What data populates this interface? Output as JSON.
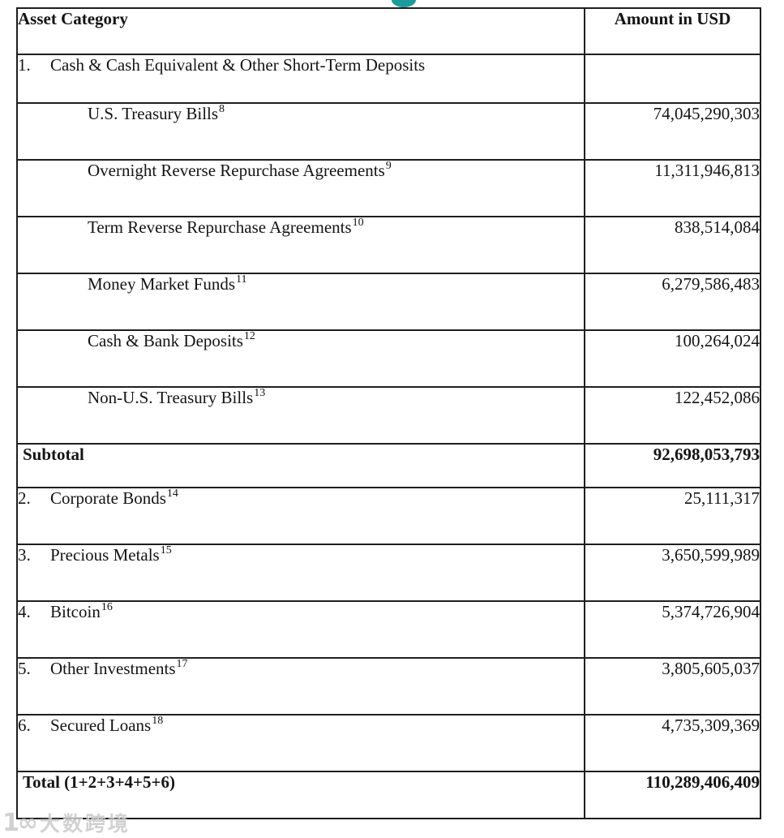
{
  "brand": {
    "logo_tip_color": "#1d9b9b"
  },
  "watermark": {
    "logo": "1∞",
    "text": "大数跨境"
  },
  "table": {
    "headers": {
      "asset_category": "Asset Category",
      "amount": "Amount in USD"
    },
    "rows": [
      {
        "type": "item",
        "lead": true,
        "num": "1.",
        "label": "Cash & Cash Equivalent & Other Short-Term Deposits",
        "sup": "",
        "amount": ""
      },
      {
        "type": "sub",
        "lead": false,
        "num": "",
        "label": "U.S. Treasury Bills",
        "sup": "8",
        "amount": "74,045,290,303"
      },
      {
        "type": "sub",
        "lead": false,
        "num": "",
        "label": "Overnight Reverse Repurchase Agreements",
        "sup": "9",
        "amount": "11,311,946,813"
      },
      {
        "type": "sub",
        "lead": false,
        "num": "",
        "label": "Term Reverse Repurchase Agreements",
        "sup": "10",
        "amount": "838,514,084"
      },
      {
        "type": "sub",
        "lead": false,
        "num": "",
        "label": "Money Market Funds",
        "sup": "11",
        "amount": "6,279,586,483"
      },
      {
        "type": "sub",
        "lead": false,
        "num": "",
        "label": "Cash & Bank Deposits",
        "sup": "12",
        "amount": "100,264,024"
      },
      {
        "type": "sub",
        "lead": false,
        "num": "",
        "label": "Non-U.S. Treasury Bills",
        "sup": "13",
        "amount": "122,452,086"
      },
      {
        "type": "subtotal",
        "lead": false,
        "num": "",
        "label": "Subtotal",
        "sup": "",
        "amount": "92,698,053,793"
      },
      {
        "type": "item",
        "lead": false,
        "num": "2.",
        "label": "Corporate Bonds",
        "sup": "14",
        "amount": "25,111,317"
      },
      {
        "type": "item",
        "lead": false,
        "num": "3.",
        "label": "Precious Metals",
        "sup": "15",
        "amount": "3,650,599,989"
      },
      {
        "type": "item",
        "lead": false,
        "num": "4.",
        "label": "Bitcoin",
        "sup": "16",
        "amount": "5,374,726,904"
      },
      {
        "type": "item",
        "lead": false,
        "num": "5.",
        "label": "Other Investments",
        "sup": "17",
        "amount": "3,805,605,037"
      },
      {
        "type": "item",
        "lead": false,
        "num": "6.",
        "label": "Secured Loans",
        "sup": "18",
        "amount": "4,735,309,369"
      },
      {
        "type": "total",
        "lead": false,
        "num": "",
        "label": "Total (1+2+3+4+5+6)",
        "sup": "",
        "amount": "110,289,406,409"
      }
    ]
  }
}
